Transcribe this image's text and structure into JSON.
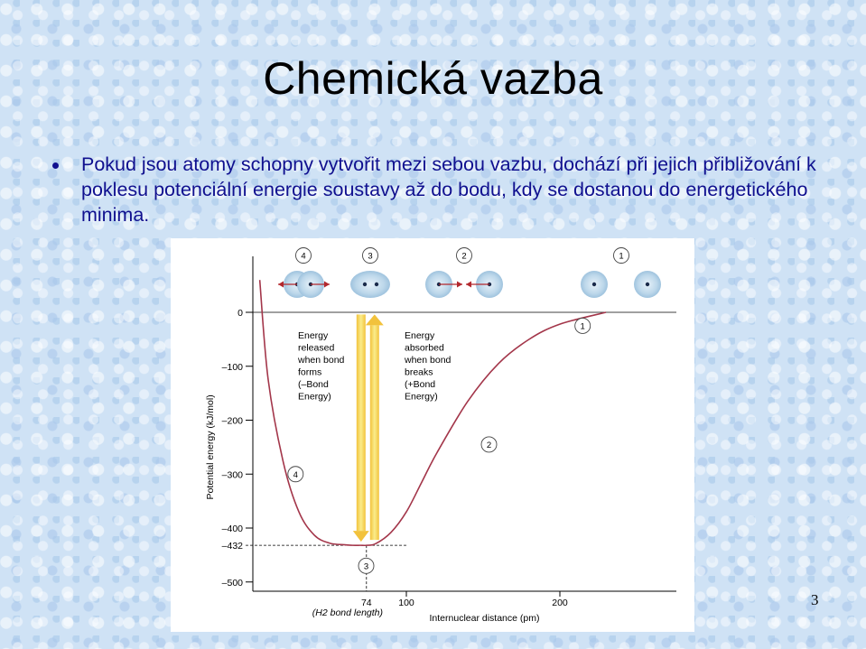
{
  "slide": {
    "title": "Chemická vazba",
    "bullet": "Pokud jsou atomy schopny vytvořit mezi sebou vazbu, dochází při jejich přibližování k poklesu potenciální energie soustavy až do bodu, kdy se dostanou do energetického minima.",
    "page_number": "3"
  },
  "chart_data": {
    "type": "line",
    "xlabel": "Internuclear distance (pm)",
    "ylabel": "Potential energy (kJ/mol)",
    "x_ticks": [
      "100",
      "200"
    ],
    "y_ticks": [
      "0",
      "–100",
      "–200",
      "–300",
      "–400",
      "–500"
    ],
    "y_tick_values": [
      0,
      -100,
      -200,
      -300,
      -400,
      -500
    ],
    "x_tick_values": [
      100,
      200
    ],
    "ylim": [
      -510,
      60
    ],
    "xlim": [
      0,
      230
    ],
    "minimum": {
      "x": 74,
      "y": -432,
      "x_label": "74",
      "y_label": "–432",
      "sub_label": "(H2 bond length)"
    },
    "series": [
      {
        "x": [
          4.5,
          10,
          20,
          30,
          40,
          50,
          60,
          65,
          70,
          74,
          80,
          90,
          100,
          110,
          120,
          140,
          160,
          180,
          200,
          230
        ],
        "y": [
          60,
          -125,
          -280,
          -370,
          -413,
          -428,
          -431,
          -432,
          -432,
          -432,
          -429,
          -408,
          -370,
          -315,
          -260,
          -165,
          -95,
          -50,
          -22,
          0
        ]
      }
    ],
    "stage_labels": [
      {
        "id": "4",
        "x": 29,
        "y": -300
      },
      {
        "id": "3",
        "x": 75,
        "y": -470
      },
      {
        "id": "2",
        "x": 155,
        "y": -245
      },
      {
        "id": "1",
        "x": 216,
        "y": -25
      }
    ],
    "annotations": {
      "released": [
        "Energy",
        "released",
        "when bond",
        "forms",
        "(–Bond",
        "Energy)"
      ],
      "absorbed": [
        "Energy",
        "absorbed",
        "when bond",
        "breaks",
        "(+Bond",
        "Energy)"
      ]
    },
    "atom_panels": [
      {
        "id": "4",
        "label": "4"
      },
      {
        "id": "3",
        "label": "3"
      },
      {
        "id": "2",
        "label": "2"
      },
      {
        "id": "1",
        "label": "1"
      }
    ],
    "colors": {
      "curve": "#a3364a",
      "arrow": "#f2c23c",
      "arrow_light": "#faec8a",
      "atom_glow": "#bcd7ea",
      "atom_core": "#1a2a4a",
      "atom_arrow": "#b2272c"
    }
  }
}
